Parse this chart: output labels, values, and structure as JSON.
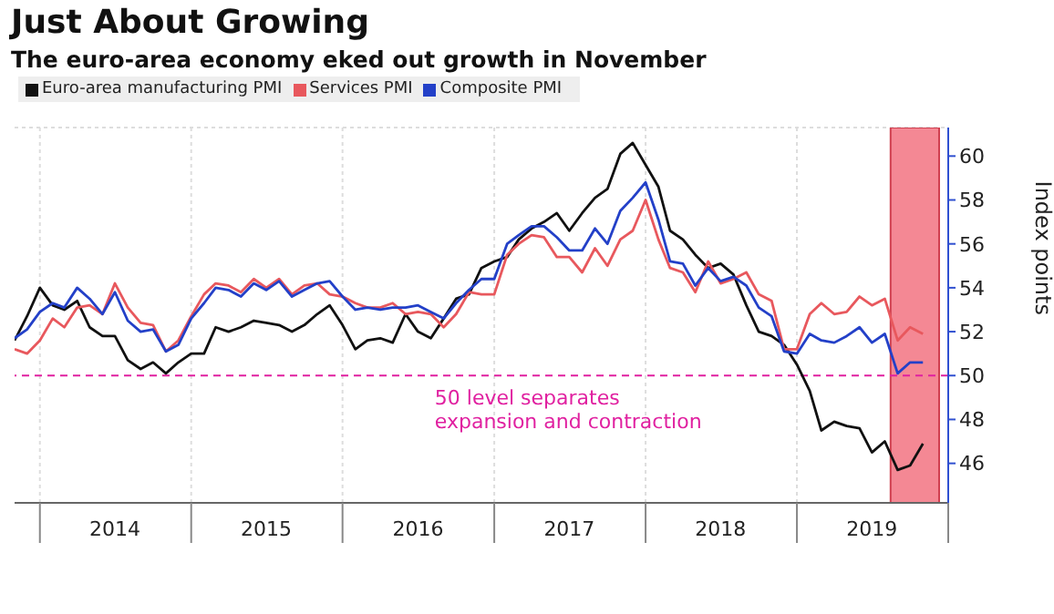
{
  "chart_data": {
    "type": "line",
    "title": "Just About Growing",
    "subtitle": "The euro-area economy eked out growth in November",
    "ylabel": "Index points",
    "x": [
      "2013-11",
      "2013-12",
      "2014-01",
      "2014-02",
      "2014-03",
      "2014-04",
      "2014-05",
      "2014-06",
      "2014-07",
      "2014-08",
      "2014-09",
      "2014-10",
      "2014-11",
      "2014-12",
      "2015-01",
      "2015-02",
      "2015-03",
      "2015-04",
      "2015-05",
      "2015-06",
      "2015-07",
      "2015-08",
      "2015-09",
      "2015-10",
      "2015-11",
      "2015-12",
      "2016-01",
      "2016-02",
      "2016-03",
      "2016-04",
      "2016-05",
      "2016-06",
      "2016-07",
      "2016-08",
      "2016-09",
      "2016-10",
      "2016-11",
      "2016-12",
      "2017-01",
      "2017-02",
      "2017-03",
      "2017-04",
      "2017-05",
      "2017-06",
      "2017-07",
      "2017-08",
      "2017-09",
      "2017-10",
      "2017-11",
      "2017-12",
      "2018-01",
      "2018-02",
      "2018-03",
      "2018-04",
      "2018-05",
      "2018-06",
      "2018-07",
      "2018-08",
      "2018-09",
      "2018-10",
      "2018-11",
      "2018-12",
      "2019-01",
      "2019-02",
      "2019-03",
      "2019-04",
      "2019-05",
      "2019-06",
      "2019-07",
      "2019-08",
      "2019-09",
      "2019-10",
      "2019-11"
    ],
    "series": [
      {
        "name": "Euro-area manufacturing PMI",
        "color": "#111111",
        "values": [
          51.6,
          52.7,
          54.0,
          53.2,
          53.0,
          53.4,
          52.2,
          51.8,
          51.8,
          50.7,
          50.3,
          50.6,
          50.1,
          50.6,
          51.0,
          51.0,
          52.2,
          52.0,
          52.2,
          52.5,
          52.4,
          52.3,
          52.0,
          52.3,
          52.8,
          53.2,
          52.3,
          51.2,
          51.6,
          51.7,
          51.5,
          52.8,
          52.0,
          51.7,
          52.6,
          53.5,
          53.7,
          54.9,
          55.2,
          55.4,
          56.2,
          56.7,
          57.0,
          57.4,
          56.6,
          57.4,
          58.1,
          58.5,
          60.1,
          60.6,
          59.6,
          58.6,
          56.6,
          56.2,
          55.5,
          54.9,
          55.1,
          54.6,
          53.2,
          52.0,
          51.8,
          51.4,
          50.5,
          49.3,
          47.5,
          47.9,
          47.7,
          47.6,
          46.5,
          47.0,
          45.7,
          45.9,
          46.9
        ]
      },
      {
        "name": "Services PMI",
        "color": "#e8585d",
        "values": [
          51.2,
          51.0,
          51.6,
          52.6,
          52.2,
          53.1,
          53.2,
          52.8,
          54.2,
          53.1,
          52.4,
          52.3,
          51.1,
          51.6,
          52.7,
          53.7,
          54.2,
          54.1,
          53.8,
          54.4,
          54.0,
          54.4,
          53.7,
          54.1,
          54.2,
          53.7,
          53.6,
          53.3,
          53.1,
          53.1,
          53.3,
          52.8,
          52.9,
          52.8,
          52.2,
          52.8,
          53.8,
          53.7,
          53.7,
          55.5,
          56.0,
          56.4,
          56.3,
          55.4,
          55.4,
          54.7,
          55.8,
          55.0,
          56.2,
          56.6,
          58.0,
          56.2,
          54.9,
          54.7,
          53.8,
          55.2,
          54.2,
          54.4,
          54.7,
          53.7,
          53.4,
          51.2,
          51.2,
          52.8,
          53.3,
          52.8,
          52.9,
          53.6,
          53.2,
          53.5,
          51.6,
          52.2,
          51.9
        ]
      },
      {
        "name": "Composite PMI",
        "color": "#2340c8",
        "values": [
          51.7,
          52.1,
          52.9,
          53.3,
          53.1,
          54.0,
          53.5,
          52.8,
          53.8,
          52.5,
          52.0,
          52.1,
          51.1,
          51.4,
          52.6,
          53.3,
          54.0,
          53.9,
          53.6,
          54.2,
          53.9,
          54.3,
          53.6,
          53.9,
          54.2,
          54.3,
          53.6,
          53.0,
          53.1,
          53.0,
          53.1,
          53.1,
          53.2,
          52.9,
          52.6,
          53.3,
          53.9,
          54.4,
          54.4,
          56.0,
          56.4,
          56.8,
          56.8,
          56.3,
          55.7,
          55.7,
          56.7,
          56.0,
          57.5,
          58.1,
          58.8,
          57.1,
          55.2,
          55.1,
          54.1,
          54.9,
          54.3,
          54.5,
          54.1,
          53.1,
          52.7,
          51.1,
          51.0,
          51.9,
          51.6,
          51.5,
          51.8,
          52.2,
          51.5,
          51.9,
          50.1,
          50.6,
          50.6
        ]
      }
    ],
    "xlim": [
      "2013-11",
      "2020-01"
    ],
    "xticks": [
      {
        "value": "2014-01",
        "label": null
      },
      {
        "value": "2014-07",
        "label": "2014"
      },
      {
        "value": "2015-01",
        "label": null
      },
      {
        "value": "2015-07",
        "label": "2015"
      },
      {
        "value": "2016-01",
        "label": null
      },
      {
        "value": "2016-07",
        "label": "2016"
      },
      {
        "value": "2017-01",
        "label": null
      },
      {
        "value": "2017-07",
        "label": "2017"
      },
      {
        "value": "2018-01",
        "label": null
      },
      {
        "value": "2018-07",
        "label": "2018"
      },
      {
        "value": "2019-01",
        "label": null
      },
      {
        "value": "2019-07",
        "label": "2019"
      },
      {
        "value": "2020-01",
        "label": null
      }
    ],
    "ylim": [
      44.2,
      61.3
    ],
    "yticks": [
      46,
      48,
      50,
      52,
      54,
      56,
      58,
      60
    ],
    "ref_lines": [
      {
        "axis": "y",
        "value": 50,
        "label": "50 level separates\nexpansion and contraction",
        "color": "#e020a0",
        "line_style": "dashed"
      }
    ],
    "bands": [
      {
        "axis": "x",
        "from": "2019-08-15",
        "to": "2019-12-10",
        "color": "#f06070"
      }
    ],
    "grid": true,
    "legend": "top left",
    "marker": "none",
    "line_style": "solid"
  }
}
